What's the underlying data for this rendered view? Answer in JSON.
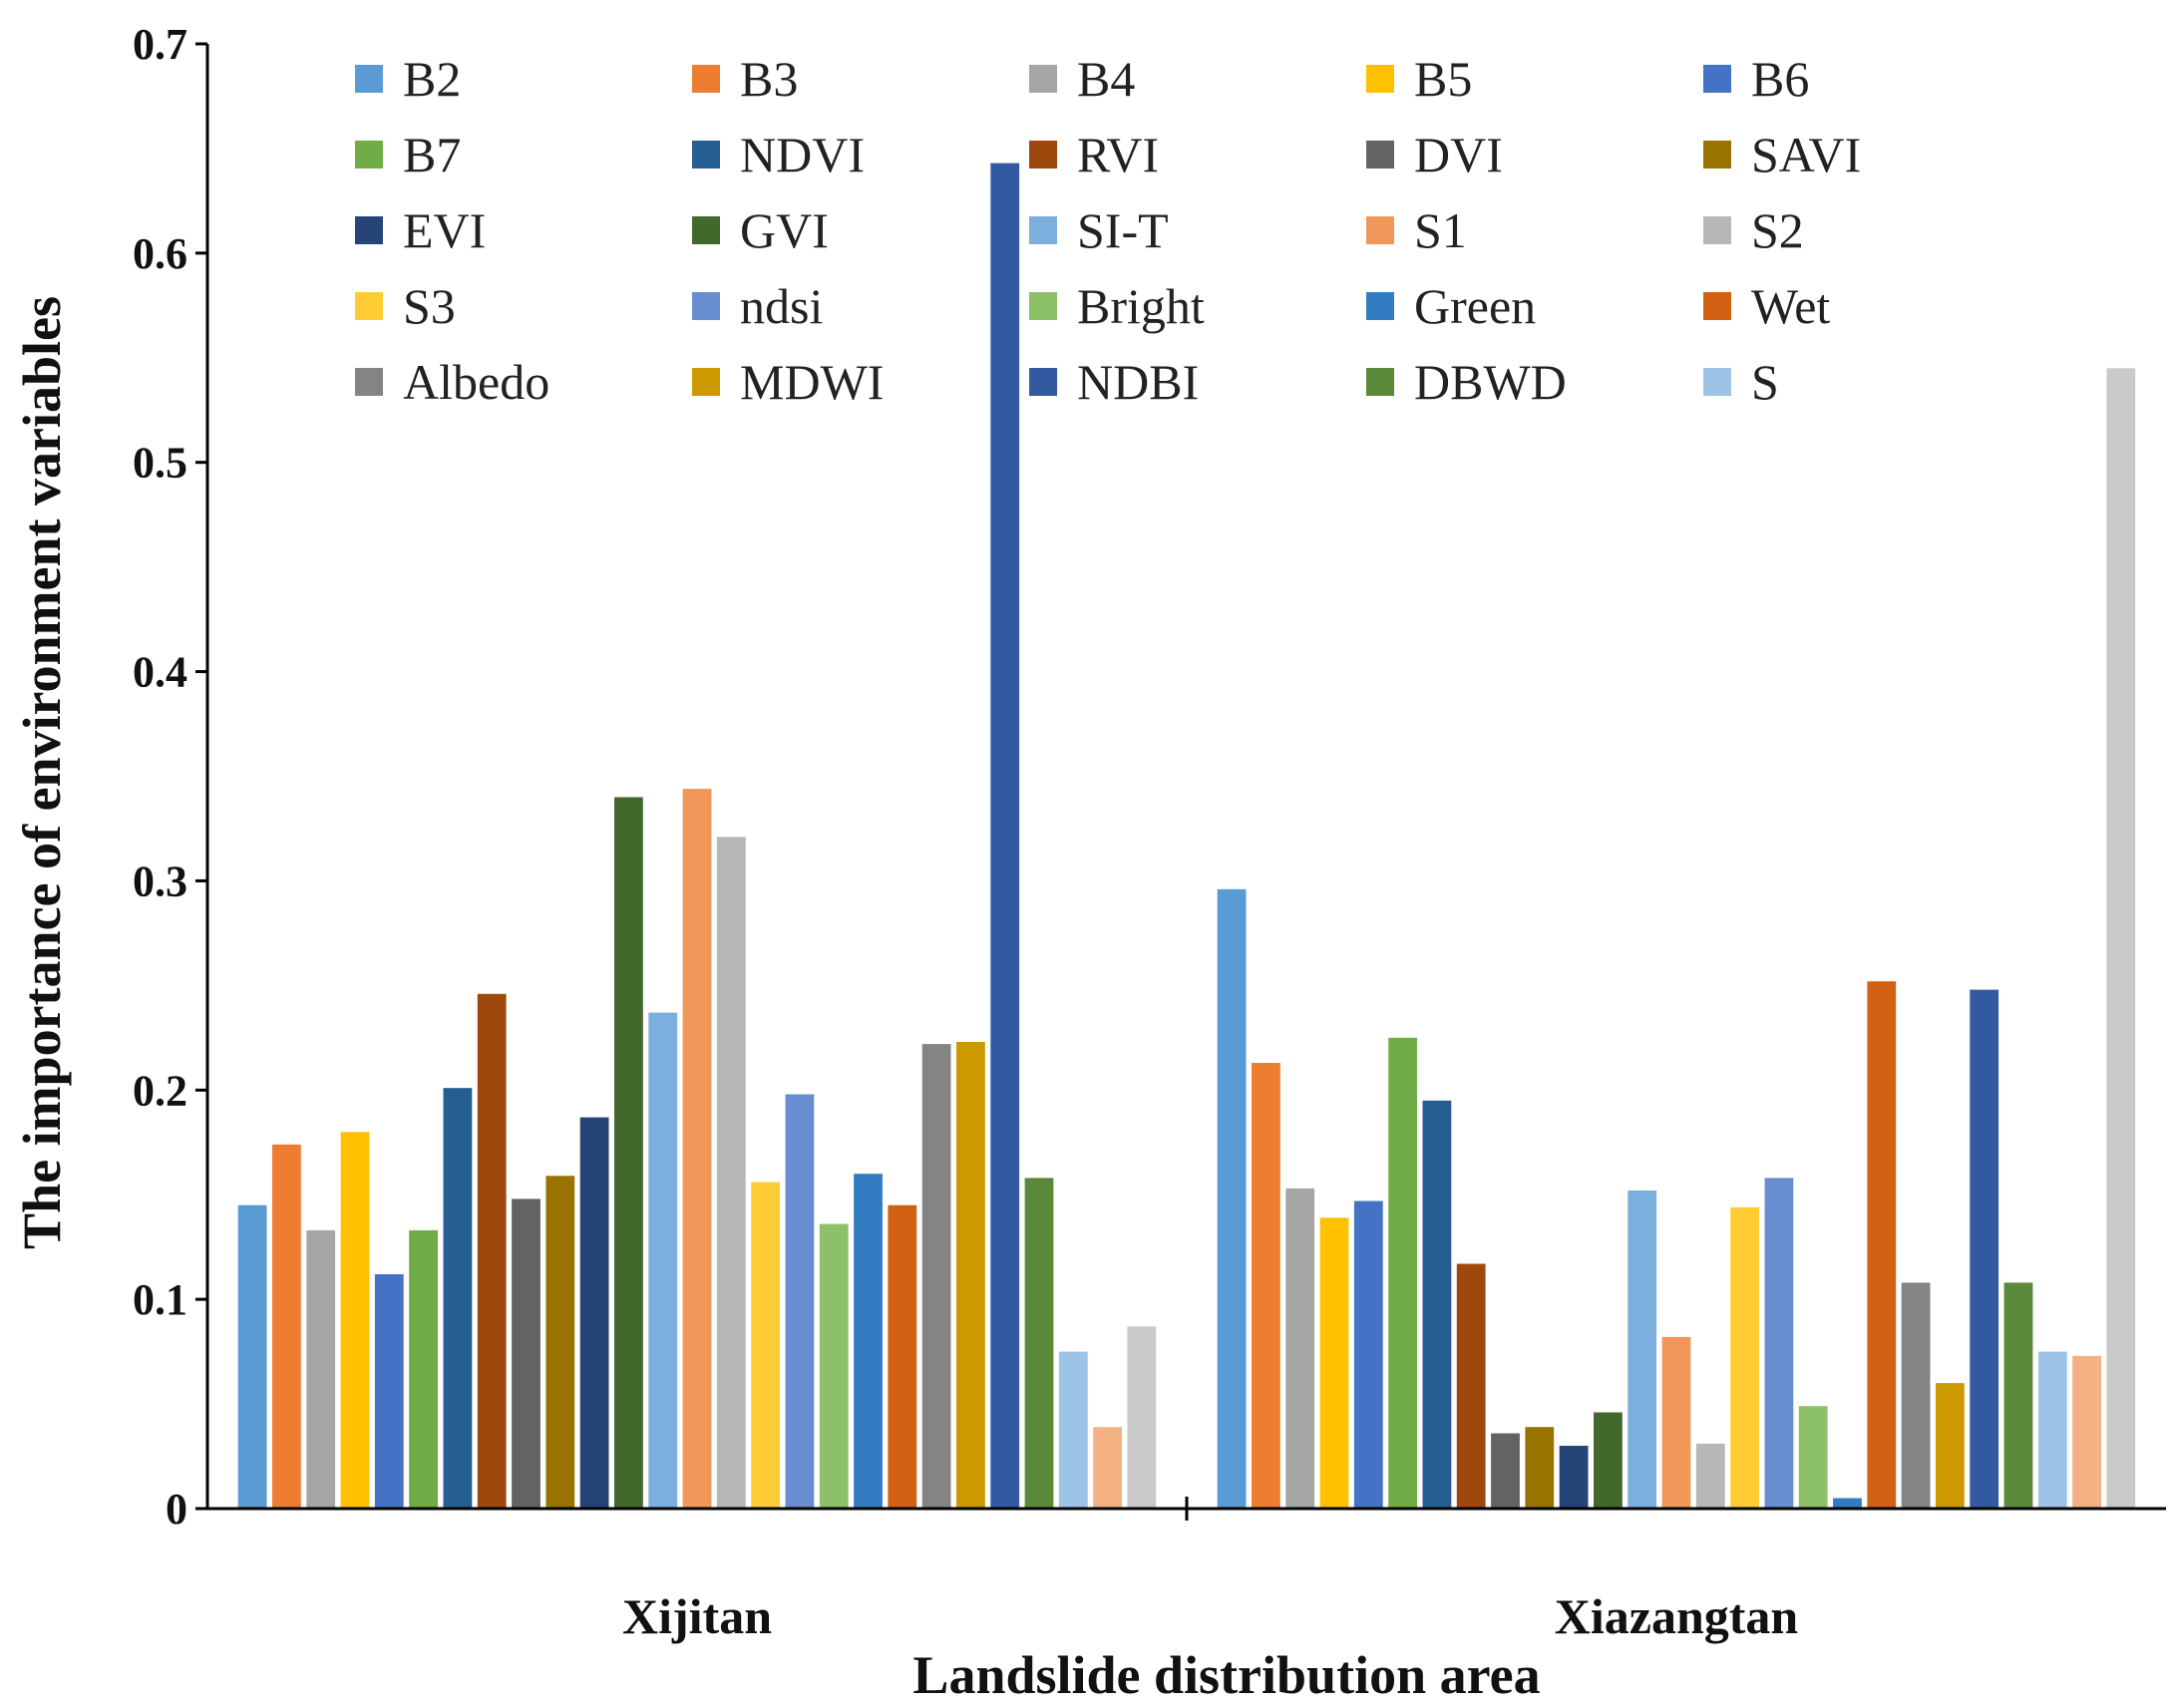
{
  "chart_data": {
    "type": "bar",
    "title": "",
    "xlabel": "Landslide distribution area",
    "ylabel": "The importance of environment variables",
    "ylim": [
      0,
      0.7
    ],
    "yticks": [
      0,
      0.1,
      0.2,
      0.3,
      0.4,
      0.5,
      0.6,
      0.7
    ],
    "ytick_labels": [
      "0",
      "0.1",
      "0.2",
      "0.3",
      "0.4",
      "0.5",
      "0.6",
      "0.7"
    ],
    "grid": false,
    "legend_position": "top",
    "categories": [
      "Xijitan",
      "Xiazangtan"
    ],
    "series": [
      {
        "name": "B2",
        "color": "#5B9BD5",
        "values": [
          0.145,
          0.296
        ]
      },
      {
        "name": "B3",
        "color": "#ED7D31",
        "values": [
          0.174,
          0.213
        ]
      },
      {
        "name": "B4",
        "color": "#A5A5A5",
        "values": [
          0.133,
          0.153
        ]
      },
      {
        "name": "B5",
        "color": "#FFC000",
        "values": [
          0.18,
          0.139
        ]
      },
      {
        "name": "B6",
        "color": "#4472C4",
        "values": [
          0.112,
          0.147
        ]
      },
      {
        "name": "B7",
        "color": "#70AD47",
        "values": [
          0.133,
          0.225
        ]
      },
      {
        "name": "NDVI",
        "color": "#255E91",
        "values": [
          0.201,
          0.195
        ]
      },
      {
        "name": "RVI",
        "color": "#9E480E",
        "values": [
          0.246,
          0.117
        ]
      },
      {
        "name": "DVI",
        "color": "#636363",
        "values": [
          0.148,
          0.036
        ]
      },
      {
        "name": "SAVI",
        "color": "#997300",
        "values": [
          0.159,
          0.039
        ]
      },
      {
        "name": "EVI",
        "color": "#264478",
        "values": [
          0.187,
          0.03
        ]
      },
      {
        "name": "GVI",
        "color": "#43682B",
        "values": [
          0.34,
          0.046
        ]
      },
      {
        "name": "SI-T",
        "color": "#7CAFDD",
        "values": [
          0.237,
          0.152
        ]
      },
      {
        "name": "S1",
        "color": "#F1975A",
        "values": [
          0.344,
          0.082
        ]
      },
      {
        "name": "S2",
        "color": "#B7B7B7",
        "values": [
          0.321,
          0.031
        ]
      },
      {
        "name": "S3",
        "color": "#FFCD33",
        "values": [
          0.156,
          0.144
        ]
      },
      {
        "name": "ndsi",
        "color": "#698ED0",
        "values": [
          0.198,
          0.158
        ]
      },
      {
        "name": "Bright",
        "color": "#8CC168",
        "values": [
          0.136,
          0.049
        ]
      },
      {
        "name": "Green",
        "color": "#327DC2",
        "values": [
          0.16,
          0.005
        ]
      },
      {
        "name": "Wet",
        "color": "#D26012",
        "values": [
          0.145,
          0.252
        ]
      },
      {
        "name": "Albedo",
        "color": "#848484",
        "values": [
          0.222,
          0.108
        ]
      },
      {
        "name": "MDWI",
        "color": "#CC9A00",
        "values": [
          0.223,
          0.06
        ]
      },
      {
        "name": "NDBI",
        "color": "#335AA1",
        "values": [
          0.643,
          0.248
        ]
      },
      {
        "name": "DBWD",
        "color": "#5A8A39",
        "values": [
          0.158,
          0.108
        ]
      },
      {
        "name": "S",
        "color": "#9DC3E6",
        "values": [
          0.075,
          0.075
        ]
      },
      {
        "name": "",
        "color": "#F4B183",
        "values": [
          0.039,
          0.073
        ]
      },
      {
        "name": "",
        "color": "#C9C9C9",
        "values": [
          0.087,
          0.545
        ]
      }
    ]
  }
}
